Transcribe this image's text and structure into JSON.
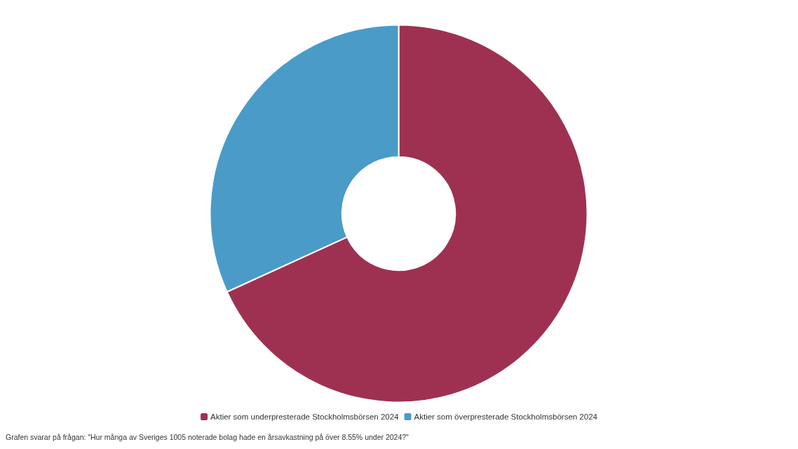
{
  "chart_data": {
    "type": "donut",
    "categories": [
      "Aktier som underpresterade Stockholmsbörsen 2024",
      "Aktier som överpresterade Stockholmsbörsen 2024"
    ],
    "values": [
      68.2,
      31.8
    ],
    "colors": [
      "#9e3151",
      "#4a9bc8"
    ],
    "legend": "bottom",
    "annotations": [
      "Grafen svarar på frågan: \"Hur många av Sveriges 1005 noterade bolag hade en årsavkastning på över 8.55% under 2024?\""
    ]
  }
}
